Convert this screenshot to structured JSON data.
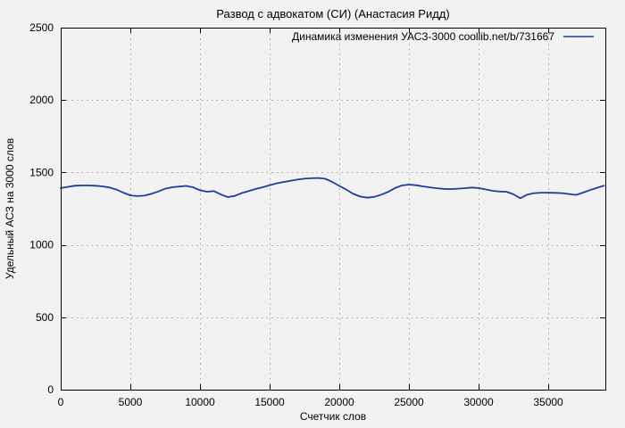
{
  "colors": {
    "background": "#f2f2f2",
    "plot_border": "#000000",
    "grid": "#a8a8a8",
    "text": "#000000",
    "series_blue": "#1b3f9e"
  },
  "chart_data": {
    "type": "line",
    "title": "Развод с адвокатом (СИ) (Анастасия Ридд)",
    "xlabel": "Счетчик слов",
    "ylabel": "Удельный АСЗ на 3000 слов",
    "legend_position": "top-right-inside",
    "grid": true,
    "grid_style": "dotted",
    "xlim": [
      0,
      39100
    ],
    "ylim": [
      0,
      2500
    ],
    "xticks": [
      0,
      5000,
      10000,
      15000,
      20000,
      25000,
      30000,
      35000
    ],
    "yticks": [
      0,
      500,
      1000,
      1500,
      2000,
      2500
    ],
    "series": [
      {
        "name": "Динамика изменения УАСЗ-3000 coollib.net/b/731667",
        "color": "#1b3f9e",
        "points": [
          [
            0,
            1392
          ],
          [
            500,
            1400
          ],
          [
            1000,
            1408
          ],
          [
            1500,
            1410
          ],
          [
            2000,
            1410
          ],
          [
            2500,
            1408
          ],
          [
            3000,
            1404
          ],
          [
            3500,
            1396
          ],
          [
            4000,
            1382
          ],
          [
            4500,
            1360
          ],
          [
            5000,
            1342
          ],
          [
            5500,
            1337
          ],
          [
            6000,
            1340
          ],
          [
            6500,
            1352
          ],
          [
            7000,
            1368
          ],
          [
            7500,
            1388
          ],
          [
            8000,
            1398
          ],
          [
            8500,
            1403
          ],
          [
            9000,
            1407
          ],
          [
            9500,
            1398
          ],
          [
            10000,
            1377
          ],
          [
            10500,
            1367
          ],
          [
            11000,
            1371
          ],
          [
            11500,
            1348
          ],
          [
            12000,
            1330
          ],
          [
            12500,
            1338
          ],
          [
            13000,
            1358
          ],
          [
            13500,
            1372
          ],
          [
            14000,
            1386
          ],
          [
            14500,
            1398
          ],
          [
            15000,
            1412
          ],
          [
            15500,
            1425
          ],
          [
            16000,
            1434
          ],
          [
            16500,
            1443
          ],
          [
            17000,
            1451
          ],
          [
            17500,
            1457
          ],
          [
            18000,
            1460
          ],
          [
            18500,
            1462
          ],
          [
            19000,
            1456
          ],
          [
            19500,
            1434
          ],
          [
            20000,
            1407
          ],
          [
            20500,
            1382
          ],
          [
            21000,
            1352
          ],
          [
            21500,
            1334
          ],
          [
            22000,
            1326
          ],
          [
            22500,
            1331
          ],
          [
            23000,
            1346
          ],
          [
            23500,
            1366
          ],
          [
            24000,
            1392
          ],
          [
            24500,
            1410
          ],
          [
            25000,
            1416
          ],
          [
            25500,
            1412
          ],
          [
            26000,
            1404
          ],
          [
            26500,
            1397
          ],
          [
            27000,
            1391
          ],
          [
            27500,
            1387
          ],
          [
            28000,
            1385
          ],
          [
            28500,
            1388
          ],
          [
            29000,
            1391
          ],
          [
            29500,
            1396
          ],
          [
            30000,
            1392
          ],
          [
            30500,
            1383
          ],
          [
            31000,
            1373
          ],
          [
            31500,
            1368
          ],
          [
            32000,
            1367
          ],
          [
            32500,
            1349
          ],
          [
            33000,
            1322
          ],
          [
            33500,
            1347
          ],
          [
            34000,
            1357
          ],
          [
            34500,
            1360
          ],
          [
            35000,
            1360
          ],
          [
            35500,
            1359
          ],
          [
            36000,
            1357
          ],
          [
            36500,
            1351
          ],
          [
            37000,
            1345
          ],
          [
            37500,
            1361
          ],
          [
            38000,
            1378
          ],
          [
            38500,
            1394
          ],
          [
            39000,
            1408
          ]
        ]
      }
    ]
  }
}
